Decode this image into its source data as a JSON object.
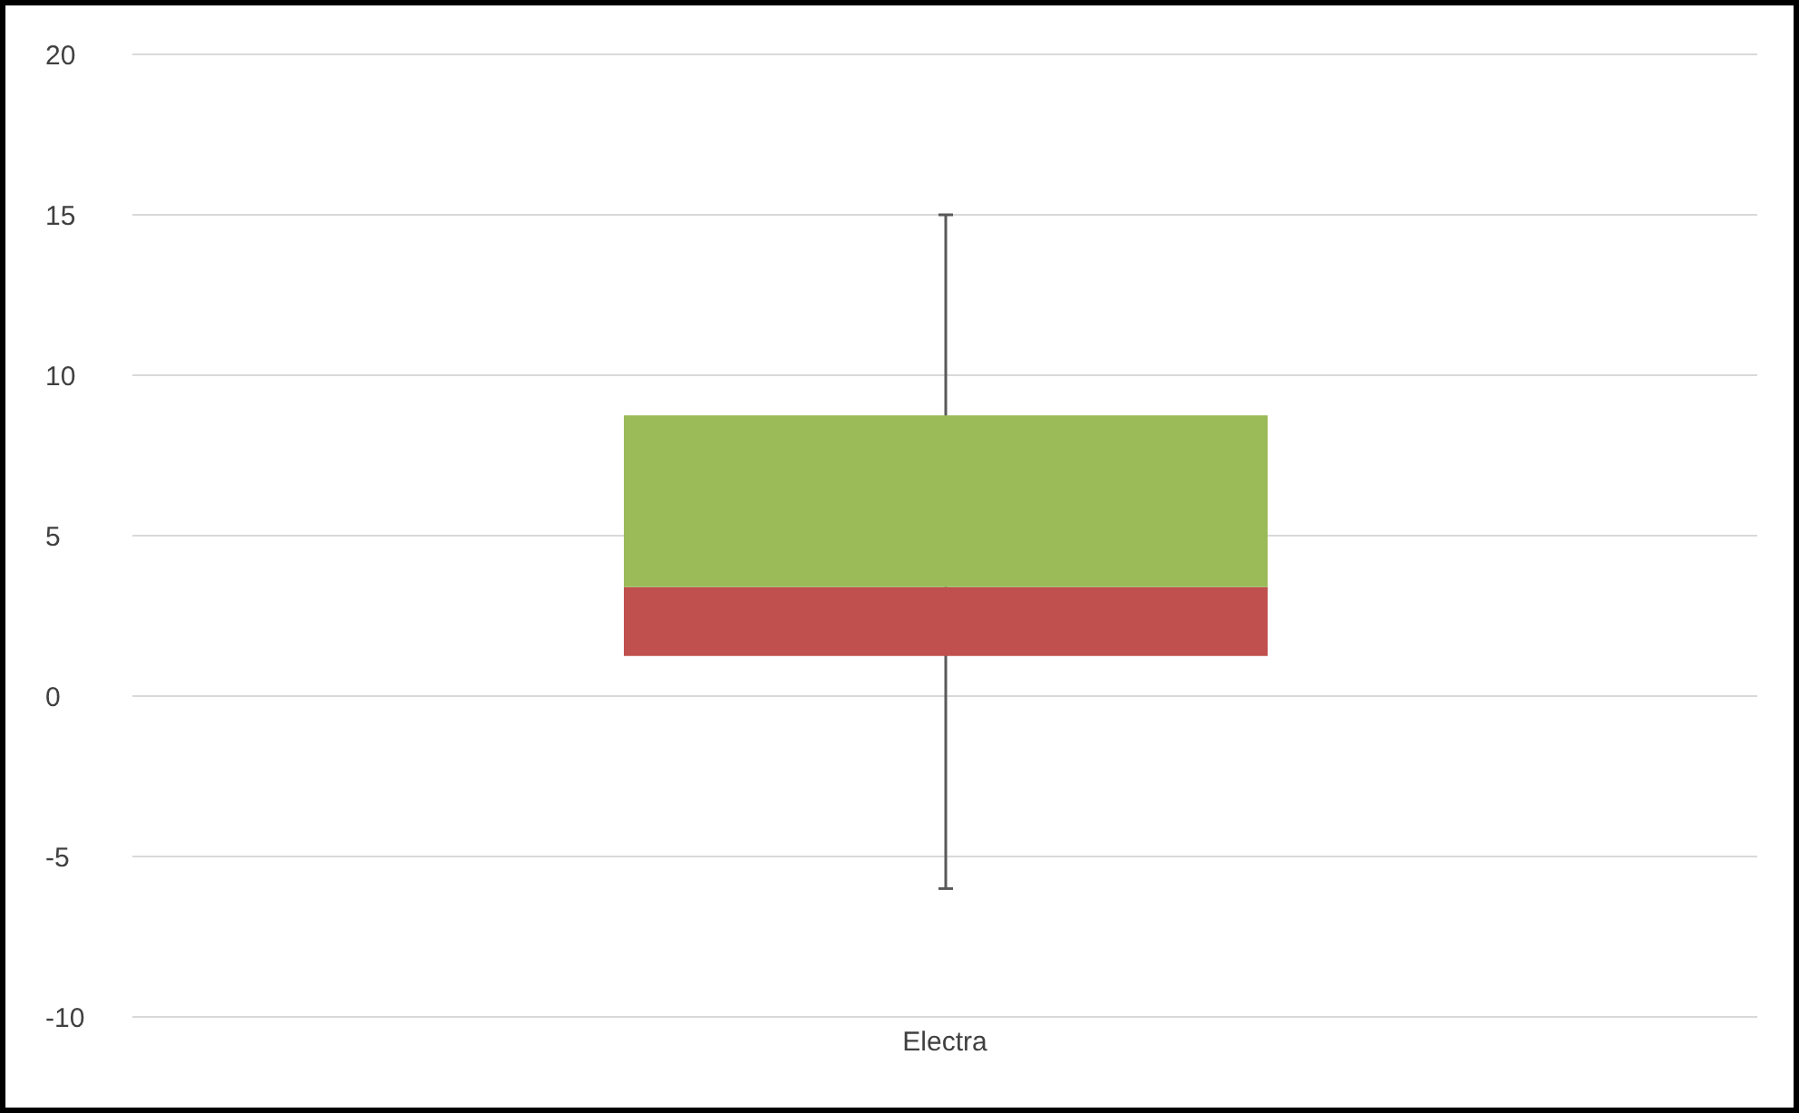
{
  "chart_data": {
    "type": "box",
    "categories": [
      "Electra"
    ],
    "boxes": [
      {
        "low": -6,
        "q1": 1.25,
        "median": 3.4,
        "q3": 8.75,
        "high": 15
      }
    ],
    "colors": [
      [
        "#c0504d",
        "#9bbb59"
      ]
    ],
    "ylim": [
      -10,
      20
    ],
    "yticks": [
      -10,
      -5,
      0,
      5,
      10,
      15,
      20
    ],
    "grid": "y"
  }
}
